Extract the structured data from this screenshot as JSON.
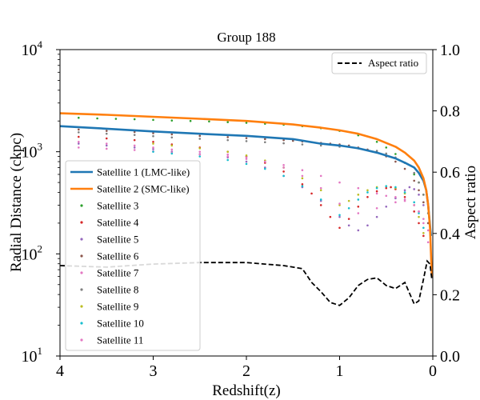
{
  "chart_data": {
    "type": "scatter",
    "title": "Group 188",
    "xlabel": "Redshift(z)",
    "ylabel_left": "Radial Distance (ckpc)",
    "ylabel_right": "Aspect ratio",
    "xlim": [
      4,
      0
    ],
    "ylim_left": [
      10,
      10000
    ],
    "ylim_right": [
      0.0,
      1.0
    ],
    "yscale_left": "log",
    "x_ticks": [
      4,
      3,
      2,
      1,
      0
    ],
    "y_ticks_left": [
      10,
      100,
      1000,
      10000
    ],
    "y_ticks_left_exponents": [
      "1",
      "2",
      "3",
      "4"
    ],
    "y_ticks_left_base": "10",
    "y_ticks_right": [
      "0.0",
      "0.2",
      "0.4",
      "0.6",
      "0.8",
      "1.0"
    ],
    "legend_main_placement": "center-left",
    "legend_aspect_placement": "top-right",
    "series": [
      {
        "name": "Satellite 1 (LMC-like)",
        "style": "line",
        "color": "#1f77b4",
        "x": [
          4.0,
          3.5,
          3.0,
          2.5,
          2.0,
          1.5,
          1.2,
          1.0,
          0.8,
          0.6,
          0.4,
          0.3,
          0.2,
          0.15,
          0.1,
          0.07,
          0.05,
          0.02
        ],
        "y": [
          1780,
          1680,
          1580,
          1500,
          1430,
          1330,
          1200,
          1150,
          1080,
          980,
          860,
          780,
          700,
          620,
          520,
          420,
          300,
          150
        ]
      },
      {
        "name": "Satellite 2 (SMC-like)",
        "style": "line",
        "color": "#ff7f0e",
        "x": [
          4.0,
          3.5,
          3.0,
          2.5,
          2.0,
          1.5,
          1.2,
          1.0,
          0.8,
          0.6,
          0.4,
          0.3,
          0.2,
          0.15,
          0.1,
          0.07,
          0.05,
          0.03,
          0.01
        ],
        "y": [
          2380,
          2300,
          2200,
          2100,
          2000,
          1850,
          1720,
          1620,
          1500,
          1330,
          1120,
          980,
          820,
          700,
          550,
          420,
          300,
          180,
          60
        ]
      },
      {
        "name": "Satellite 3",
        "style": "points",
        "color": "#2ca02c",
        "x": [
          3.8,
          3.6,
          3.4,
          3.2,
          3.0,
          2.8,
          2.6,
          2.4,
          2.2,
          2.0,
          1.8,
          1.6,
          1.4,
          1.2,
          1.0,
          0.8,
          0.6,
          0.5,
          0.4,
          0.3,
          0.2,
          0.15,
          0.1,
          0.05
        ],
        "y": [
          2150,
          2120,
          2100,
          2080,
          2050,
          2020,
          2000,
          1980,
          1950,
          1920,
          1880,
          1840,
          1780,
          1700,
          1600,
          1450,
          1250,
          1100,
          950,
          780,
          600,
          500,
          380,
          250
        ]
      },
      {
        "name": "Satellite 4",
        "style": "points",
        "color": "#d62728",
        "x": [
          3.8,
          3.5,
          3.2,
          3.0,
          2.8,
          2.5,
          2.2,
          2.0,
          1.8,
          1.6,
          1.4,
          1.3,
          1.2,
          1.1,
          1.0,
          0.9,
          0.8,
          0.7,
          0.6,
          0.5,
          0.45,
          0.4,
          0.3,
          0.2,
          0.15,
          0.1
        ],
        "y": [
          1400,
          1350,
          1300,
          1250,
          1180,
          1100,
          1000,
          900,
          780,
          640,
          480,
          390,
          300,
          230,
          180,
          220,
          290,
          360,
          410,
          440,
          450,
          430,
          360,
          260,
          200,
          150
        ]
      },
      {
        "name": "Satellite 5",
        "style": "points",
        "color": "#9467bd",
        "x": [
          3.8,
          3.5,
          3.2,
          3.0,
          2.8,
          2.5,
          2.2,
          2.0,
          1.8,
          1.6,
          1.4,
          1.2,
          1.0,
          0.9,
          0.8,
          0.7,
          0.6,
          0.5,
          0.4,
          0.3,
          0.25,
          0.2,
          0.15,
          0.1,
          0.05
        ],
        "y": [
          1200,
          1150,
          1100,
          1060,
          1000,
          950,
          880,
          800,
          700,
          580,
          450,
          330,
          230,
          190,
          170,
          190,
          230,
          290,
          350,
          420,
          450,
          430,
          380,
          300,
          200
        ]
      },
      {
        "name": "Satellite 6",
        "style": "points",
        "color": "#8c564b",
        "x": [
          3.8,
          3.5,
          3.2,
          3.0,
          2.8,
          2.5,
          2.2,
          2.0,
          1.8,
          1.6,
          1.5,
          1.4,
          1.3,
          1.2,
          1.1,
          1.0,
          0.9,
          0.8,
          0.7,
          0.6,
          0.5,
          0.4,
          0.3,
          0.2,
          0.15,
          0.1,
          0.05
        ],
        "y": [
          1650,
          1600,
          1560,
          1520,
          1480,
          1430,
          1390,
          1360,
          1330,
          1300,
          1280,
          1260,
          1240,
          1220,
          1200,
          1180,
          1150,
          1100,
          1050,
          980,
          900,
          800,
          680,
          520,
          420,
          320,
          200
        ]
      },
      {
        "name": "Satellite 7",
        "style": "points",
        "color": "#e377c2",
        "x": [
          3.8,
          3.5,
          3.2,
          3.0,
          2.8,
          2.5,
          2.2,
          2.0,
          1.8,
          1.6,
          1.4,
          1.2,
          1.0,
          0.8,
          0.6,
          0.5,
          0.4,
          0.3,
          0.2,
          0.15,
          0.1,
          0.05
        ],
        "y": [
          1100,
          1070,
          1040,
          1010,
          980,
          940,
          900,
          850,
          800,
          740,
          660,
          580,
          500,
          440,
          390,
          370,
          360,
          340,
          300,
          260,
          220,
          170
        ]
      },
      {
        "name": "Satellite 8",
        "style": "points",
        "color": "#7f7f7f",
        "x": [
          3.8,
          3.5,
          3.2,
          3.0,
          2.8,
          2.5,
          2.2,
          2.0,
          1.8,
          1.6,
          1.4,
          1.2,
          1.0,
          0.8,
          0.6,
          0.5,
          0.4,
          0.3,
          0.2,
          0.15,
          0.1,
          0.05
        ],
        "y": [
          1550,
          1500,
          1460,
          1420,
          1380,
          1340,
          1300,
          1270,
          1240,
          1210,
          1180,
          1150,
          1120,
          1080,
          1020,
          960,
          880,
          780,
          620,
          500,
          380,
          250
        ]
      },
      {
        "name": "Satellite 9",
        "style": "points",
        "color": "#bcbd22",
        "x": [
          3.0,
          2.8,
          2.5,
          2.2,
          2.0,
          1.8,
          1.6,
          1.4,
          1.2,
          1.0,
          0.9,
          0.8,
          0.7,
          0.6,
          0.5,
          0.4,
          0.3,
          0.2,
          0.15,
          0.1
        ],
        "y": [
          1200,
          1150,
          1080,
          1000,
          920,
          820,
          700,
          550,
          420,
          300,
          330,
          380,
          420,
          450,
          460,
          440,
          390,
          300,
          230,
          160
        ]
      },
      {
        "name": "Satellite 10",
        "style": "points",
        "color": "#17becf",
        "x": [
          3.0,
          2.8,
          2.5,
          2.2,
          2.0,
          1.8,
          1.6,
          1.4,
          1.2,
          1.0,
          0.9,
          0.8,
          0.7,
          0.6,
          0.5,
          0.4,
          0.3,
          0.2,
          0.15,
          0.1
        ],
        "y": [
          1000,
          960,
          900,
          830,
          760,
          680,
          580,
          460,
          340,
          240,
          280,
          340,
          400,
          440,
          460,
          450,
          400,
          320,
          250,
          180
        ]
      },
      {
        "name": "Satellite 11",
        "style": "points",
        "color": "#e377c2",
        "x": [
          3.8,
          3.5,
          3.2,
          3.0,
          2.8,
          2.5,
          2.2,
          2.0,
          1.8,
          1.6,
          1.4,
          1.2,
          1.0,
          0.8,
          0.6,
          0.4,
          0.3,
          0.2,
          0.15,
          0.1,
          0.05
        ],
        "y": [
          1250,
          1200,
          1150,
          1100,
          1050,
          1000,
          940,
          880,
          800,
          700,
          580,
          440,
          310,
          250,
          280,
          320,
          330,
          300,
          260,
          200,
          130
        ]
      }
    ],
    "aspect_ratio": {
      "name": "Aspect ratio",
      "style": "dashed",
      "color": "#000000",
      "x": [
        4.0,
        3.5,
        3.0,
        2.5,
        2.0,
        1.6,
        1.4,
        1.3,
        1.2,
        1.1,
        1.0,
        0.9,
        0.8,
        0.7,
        0.6,
        0.5,
        0.4,
        0.3,
        0.2,
        0.15,
        0.1,
        0.06,
        0.03,
        0.01
      ],
      "y": [
        0.295,
        0.29,
        0.3,
        0.305,
        0.305,
        0.295,
        0.285,
        0.24,
        0.21,
        0.175,
        0.165,
        0.19,
        0.23,
        0.25,
        0.255,
        0.23,
        0.22,
        0.24,
        0.17,
        0.18,
        0.25,
        0.31,
        0.3,
        0.25
      ]
    }
  }
}
